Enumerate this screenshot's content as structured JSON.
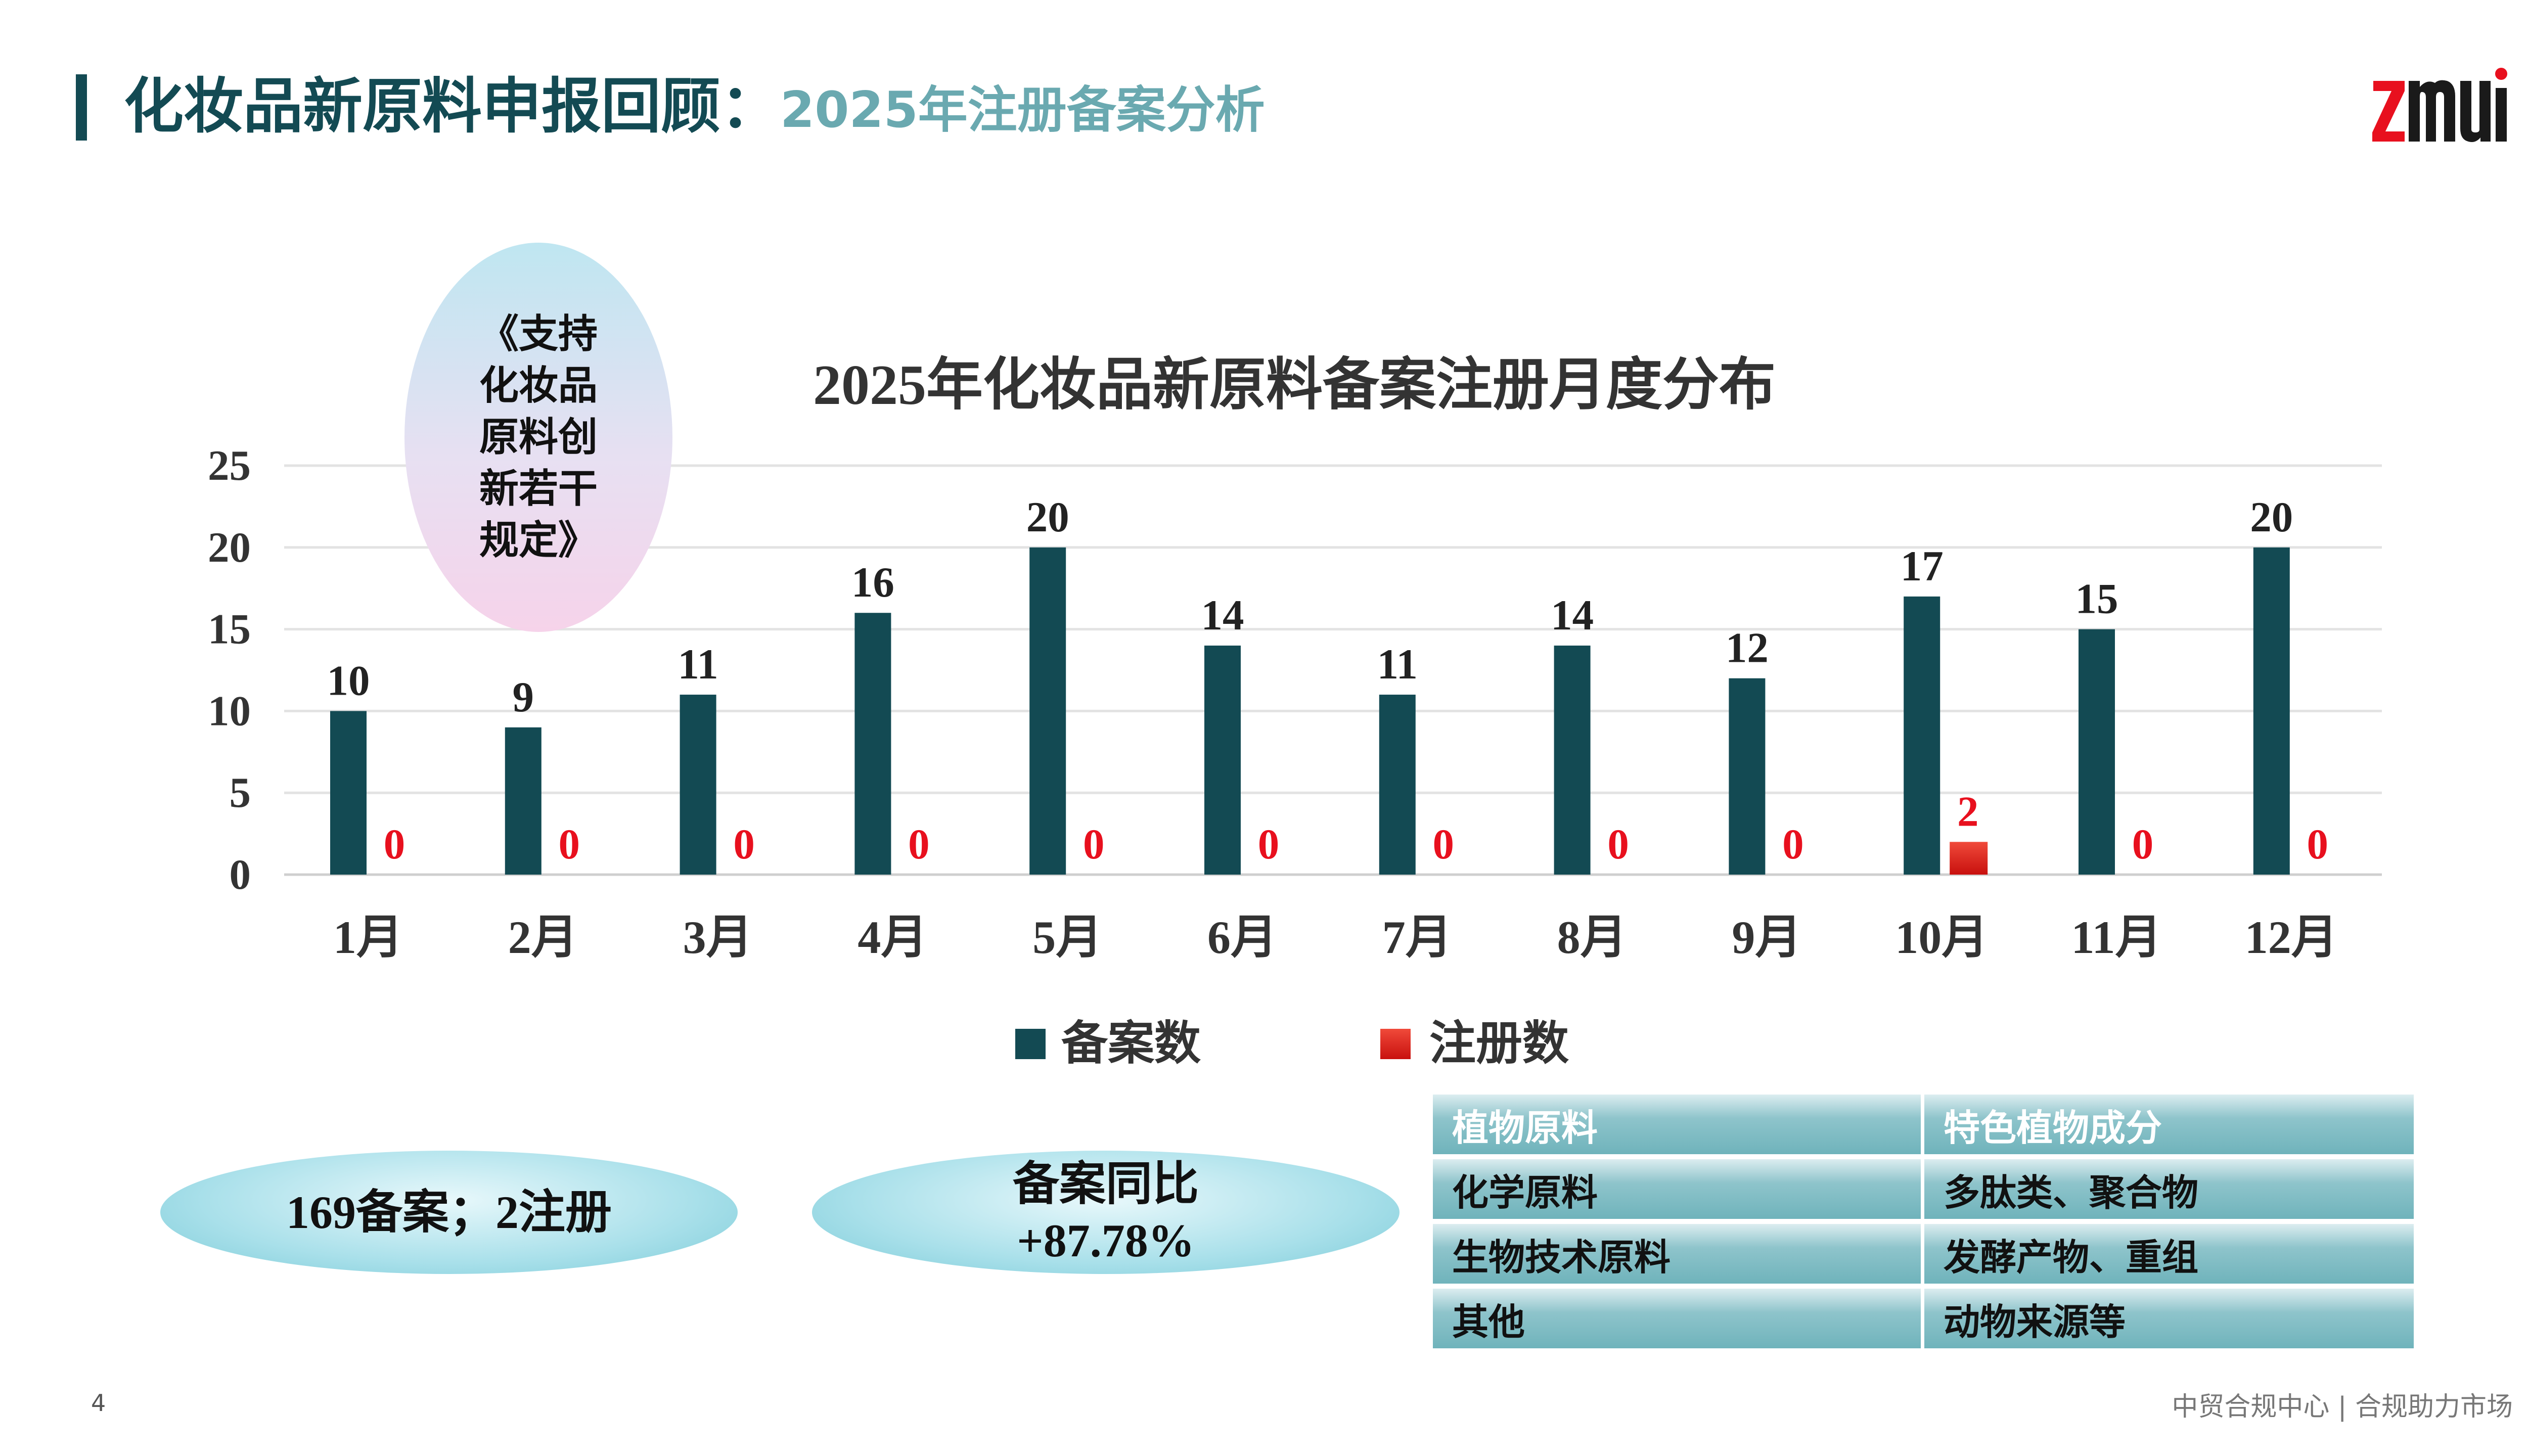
{
  "header": {
    "title": "化妆品新原料申报回顾：",
    "subtitle": "2025年注册备案分析",
    "logo_text": "ZMUI"
  },
  "callout": {
    "regulation": "《支持化妆品原料创新若干规定》",
    "totals": "169备案；2注册",
    "yoy_label": "备案同比",
    "yoy_value": "+87.78%"
  },
  "chart_data": {
    "type": "bar",
    "title": "2025年化妆品新原料备案注册月度分布",
    "categories": [
      "1月",
      "2月",
      "3月",
      "4月",
      "5月",
      "6月",
      "7月",
      "8月",
      "9月",
      "10月",
      "11月",
      "12月"
    ],
    "series": [
      {
        "name": "备案数",
        "color": "#134a53",
        "values": [
          10,
          9,
          11,
          16,
          20,
          14,
          11,
          14,
          12,
          17,
          15,
          20
        ]
      },
      {
        "name": "注册数",
        "color": "#e8211d",
        "values": [
          0,
          0,
          0,
          0,
          0,
          0,
          0,
          0,
          0,
          2,
          0,
          0
        ]
      }
    ],
    "yticks": [
      0,
      5,
      10,
      15,
      20,
      25
    ],
    "ylim": [
      0,
      25
    ],
    "grid": true,
    "legend": "bottom"
  },
  "table": {
    "rows": [
      [
        "植物原料",
        "特色植物成分"
      ],
      [
        "化学原料",
        "多肽类、聚合物"
      ],
      [
        "生物技术原料",
        "发酵产物、重组"
      ],
      [
        "其他",
        "动物来源等"
      ]
    ]
  },
  "footer": {
    "page": "4",
    "text": "中贸合规中心 | 合规助力市场"
  }
}
